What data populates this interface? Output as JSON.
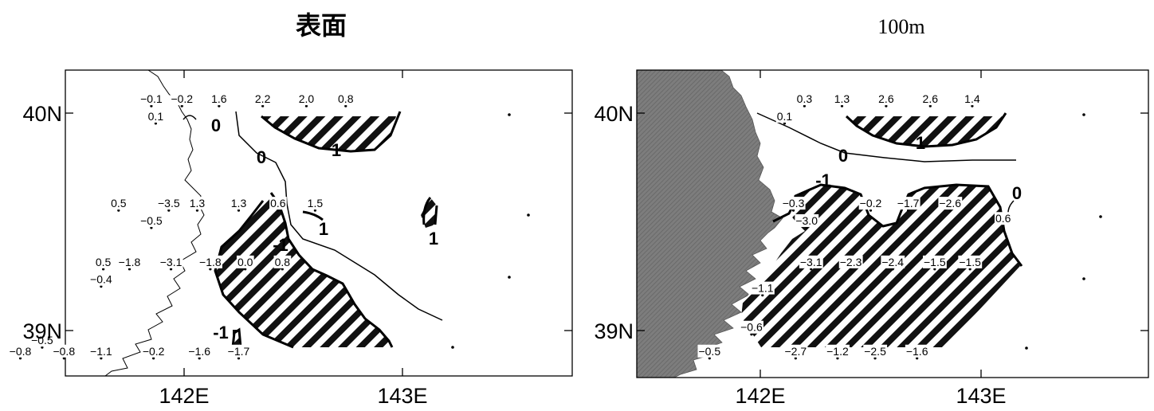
{
  "panels": [
    {
      "title": "表面",
      "lat_labels": [
        "40N",
        "39N"
      ],
      "lon_labels": [
        "142E",
        "143E"
      ],
      "contour_labels": [
        "0",
        "0",
        "1",
        "1",
        "1",
        "-1",
        "-1"
      ],
      "station_values": [
        {
          "lon": 141.85,
          "lat": 40.04,
          "value": "-0.1"
        },
        {
          "lon": 141.99,
          "lat": 40.04,
          "value": "-0.2"
        },
        {
          "lon": 141.87,
          "lat": 39.96,
          "value": "0.1"
        },
        {
          "lon": 142.16,
          "lat": 40.04,
          "value": "1.6"
        },
        {
          "lon": 142.36,
          "lat": 40.04,
          "value": "2.2"
        },
        {
          "lon": 142.56,
          "lat": 40.04,
          "value": "2.0"
        },
        {
          "lon": 142.74,
          "lat": 40.04,
          "value": "0.8"
        },
        {
          "lon": 141.7,
          "lat": 39.56,
          "value": "0.5"
        },
        {
          "lon": 141.93,
          "lat": 39.56,
          "value": "-3.5"
        },
        {
          "lon": 141.85,
          "lat": 39.48,
          "value": "-0.5"
        },
        {
          "lon": 142.06,
          "lat": 39.56,
          "value": "1.3"
        },
        {
          "lon": 142.25,
          "lat": 39.56,
          "value": "1.3"
        },
        {
          "lon": 142.43,
          "lat": 39.56,
          "value": "0.6"
        },
        {
          "lon": 142.6,
          "lat": 39.56,
          "value": "1.5"
        },
        {
          "lon": 141.63,
          "lat": 39.29,
          "value": "0.5"
        },
        {
          "lon": 141.75,
          "lat": 39.29,
          "value": "-1.8"
        },
        {
          "lon": 141.94,
          "lat": 39.29,
          "value": "-3.1"
        },
        {
          "lon": 142.12,
          "lat": 39.29,
          "value": "-1.8"
        },
        {
          "lon": 142.28,
          "lat": 39.29,
          "value": "0.0"
        },
        {
          "lon": 142.45,
          "lat": 39.29,
          "value": "0.8"
        },
        {
          "lon": 141.62,
          "lat": 39.21,
          "value": "-0.4"
        },
        {
          "lon": 141.35,
          "lat": 38.93,
          "value": "-0.5"
        },
        {
          "lon": 141.25,
          "lat": 38.88,
          "value": "-0.8"
        },
        {
          "lon": 141.45,
          "lat": 38.88,
          "value": "-0.8"
        },
        {
          "lon": 141.62,
          "lat": 38.88,
          "value": "-1.1"
        },
        {
          "lon": 141.86,
          "lat": 38.88,
          "value": "-0.2"
        },
        {
          "lon": 142.07,
          "lat": 38.88,
          "value": "-1.6"
        },
        {
          "lon": 142.25,
          "lat": 38.88,
          "value": "-1.7"
        }
      ]
    },
    {
      "title": "100m",
      "lat_labels": [
        "40N",
        "39N"
      ],
      "lon_labels": [
        "142E",
        "143E"
      ],
      "contour_labels": [
        "0",
        "0",
        "1",
        "-1"
      ],
      "station_values": [
        {
          "lon": 142.2,
          "lat": 40.04,
          "value": "0.3"
        },
        {
          "lon": 142.37,
          "lat": 40.04,
          "value": "1.3"
        },
        {
          "lon": 142.57,
          "lat": 40.04,
          "value": "2.6"
        },
        {
          "lon": 142.77,
          "lat": 40.04,
          "value": "2.6"
        },
        {
          "lon": 142.96,
          "lat": 40.04,
          "value": "1.4"
        },
        {
          "lon": 142.11,
          "lat": 39.96,
          "value": "0.1"
        },
        {
          "lon": 142.15,
          "lat": 39.56,
          "value": "-0.3"
        },
        {
          "lon": 142.5,
          "lat": 39.56,
          "value": "-0.2"
        },
        {
          "lon": 142.67,
          "lat": 39.56,
          "value": "-1.7"
        },
        {
          "lon": 142.86,
          "lat": 39.56,
          "value": "-2.6"
        },
        {
          "lon": 142.21,
          "lat": 39.48,
          "value": "-3.0"
        },
        {
          "lon": 143.1,
          "lat": 39.49,
          "value": "0.6"
        },
        {
          "lon": 142.23,
          "lat": 39.29,
          "value": "-3.1"
        },
        {
          "lon": 142.41,
          "lat": 39.29,
          "value": "-2.3"
        },
        {
          "lon": 142.6,
          "lat": 39.29,
          "value": "-2.4"
        },
        {
          "lon": 142.79,
          "lat": 39.29,
          "value": "-1.5"
        },
        {
          "lon": 142.95,
          "lat": 39.29,
          "value": "-1.5"
        },
        {
          "lon": 142.01,
          "lat": 39.17,
          "value": "-1.1"
        },
        {
          "lon": 141.96,
          "lat": 38.99,
          "value": "-0.6"
        },
        {
          "lon": 141.77,
          "lat": 38.88,
          "value": "-0.5"
        },
        {
          "lon": 142.16,
          "lat": 38.88,
          "value": "-2.7"
        },
        {
          "lon": 142.35,
          "lat": 38.88,
          "value": "-1.2"
        },
        {
          "lon": 142.52,
          "lat": 38.88,
          "value": "-2.5"
        },
        {
          "lon": 142.71,
          "lat": 38.88,
          "value": "-1.6"
        }
      ]
    }
  ]
}
